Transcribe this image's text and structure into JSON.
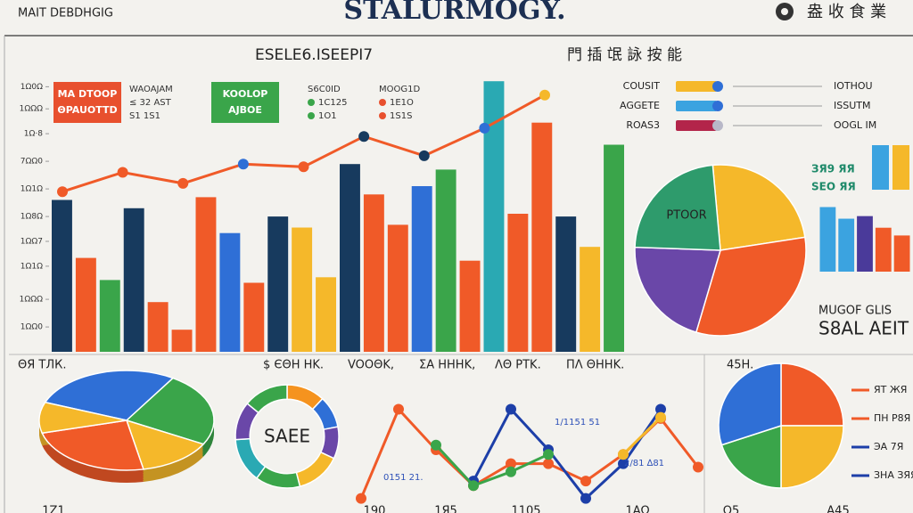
{
  "header": {
    "left": "MAIT DEBDHGIG",
    "title": "STALURMOGY.",
    "right": "盎 收 食 業"
  },
  "footer": [
    "1Z1",
    "190",
    "1Я5",
    "1105",
    "1ΑΩ",
    "Ο5",
    "Α45"
  ],
  "legend": {
    "rows": [
      {
        "name": "COUSIT",
        "color": "#f5b82a",
        "dot": "#2f6fd6",
        "value": "IOTHOU"
      },
      {
        "name": "AGGETE",
        "color": "#3ba3e0",
        "dot": "#2f6fd6",
        "value": "ISSUTM"
      },
      {
        "name": "ROAS3",
        "color": "#b3254a",
        "dot": "#b8b8c8",
        "value": "OOGL IM"
      }
    ]
  },
  "chart_data": [
    {
      "type": "bar",
      "subtitle": "ESELE6.ISEEPI7",
      "note": "門 插 氓 詠 按 能",
      "boxes": [
        {
          "lines": [
            "MA DTOOP",
            "ΘPAUOTTD"
          ],
          "color": "#e8502e"
        },
        {
          "lines": [
            "KOOLOP",
            "AJBOE"
          ],
          "color": "#3aa54a"
        }
      ],
      "keys": [
        {
          "lines": [
            "WAOAJAM",
            "≤ 32 AST",
            "S1 1S1"
          ]
        },
        {
          "lines": [
            "S6C0ID",
            "1C125",
            "1O1"
          ],
          "dot": "#3aa54a"
        },
        {
          "lines": [
            "MOOG1D",
            "1E1O",
            "1S1S"
          ],
          "dot": "#e8502e"
        }
      ],
      "values": [
        55,
        34,
        26,
        52,
        18,
        8,
        56,
        43,
        25,
        49,
        45,
        27,
        68,
        57,
        46,
        60,
        66,
        33,
        98,
        50,
        83,
        49,
        38,
        75
      ],
      "colors": [
        "#173a5e",
        "#f05a28",
        "#3aa54a",
        "#173a5e",
        "#f05a28",
        "#f05a28",
        "#f05a28",
        "#2f6fd6",
        "#f05a28",
        "#173a5e",
        "#f5b82a",
        "#f5b82a",
        "#173a5e",
        "#f05a28",
        "#f05a28",
        "#2f6fd6",
        "#3aa54a",
        "#f05a28",
        "#2aa9b3",
        "#f05a28",
        "#f05a28",
        "#173a5e",
        "#f5b82a",
        "#3aa54a"
      ],
      "line": {
        "color": "#f05a28",
        "values": [
          58,
          65,
          61,
          68,
          67,
          78,
          71,
          81,
          93
        ],
        "marker_colors": [
          "#f05a28",
          "#f05a28",
          "#f05a28",
          "#2f6fd6",
          "#f05a28",
          "#173a5e",
          "#173a5e",
          "#2f6fd6",
          "#f5b82a"
        ]
      },
      "ylim": [
        0,
        100
      ],
      "yticks": [
        {
          "value": 96,
          "label": "1Ω0Ω"
        },
        {
          "value": 88,
          "label": "1ΩΩΩ"
        },
        {
          "value": 79,
          "label": "1Ω·8"
        },
        {
          "value": 69,
          "label": "7ΩΩ0"
        },
        {
          "value": 59,
          "label": "1Ω1Ω"
        },
        {
          "value": 49,
          "label": "1Ω8Ω"
        },
        {
          "value": 40,
          "label": "1ΩΩ7"
        },
        {
          "value": 31,
          "label": "1Ω1Ω"
        },
        {
          "value": 19,
          "label": "1ΩΩΩ"
        },
        {
          "value": 9,
          "label": "1ΩΩ0"
        }
      ]
    },
    {
      "type": "pie",
      "label": "PTOOR",
      "caption": [
        "MUGOF GLIS",
        "S8AL AEIT"
      ],
      "values": [
        24,
        32,
        21,
        23
      ],
      "colors": [
        "#f5b82a",
        "#f05a28",
        "#6a47a8",
        "#2e9b6c"
      ]
    },
    {
      "type": "bar",
      "title": "ЗЯ9 ЯЯ",
      "subtitle": "SEO ЯЯ",
      "values": [
        50,
        41,
        43,
        34,
        28
      ],
      "colors": [
        "#3ba3e0",
        "#3ba3e0",
        "#4a3a9a",
        "#f05a28",
        "#f05a28"
      ],
      "ylim": [
        0,
        100
      ]
    },
    {
      "type": "bar",
      "values": [
        35,
        35
      ],
      "colors": [
        "#3ba3e0",
        "#f5b82a"
      ],
      "ylim": [
        0,
        35
      ]
    },
    {
      "type": "pie3d",
      "title": "ΘЯ ТЛК.",
      "values": [
        28,
        24,
        14,
        24,
        10
      ],
      "colors": [
        "#2f6fd6",
        "#3aa54a",
        "#f5b82a",
        "#f05a28",
        "#f5b82a"
      ]
    },
    {
      "type": "donut",
      "title": "$ ЄΘΗ ΗΚ.",
      "label": "SAEE",
      "values": [
        12,
        10,
        10,
        14,
        14,
        14,
        12,
        14
      ],
      "colors": [
        "#f5931e",
        "#2f6fd6",
        "#6a47a8",
        "#f5b82a",
        "#3aa54a",
        "#2aa9b3",
        "#6a47a8",
        "#3aa54a"
      ]
    },
    {
      "type": "line",
      "titles": [
        "VOOΘK,",
        "ΣΑ ΗΗΗΚ,",
        "ΛΘ ΡΤΚ.",
        "ΠΛ ΘΗΗΚ."
      ],
      "annotations": [
        "0151 21.",
        "1/1151 51",
        "2/81 ∆81"
      ],
      "ylim": [
        0,
        100
      ],
      "series": [
        {
          "color": "#f05a28",
          "values": [
            8,
            85,
            50,
            19,
            38,
            38,
            23,
            46,
            77,
            35
          ]
        },
        {
          "color": "#1d3fa8",
          "values": [
            null,
            null,
            null,
            23,
            85,
            50,
            8,
            38,
            85,
            null
          ]
        },
        {
          "color": "#3aa54a",
          "values": [
            null,
            null,
            54,
            19,
            31,
            46,
            null,
            null,
            null,
            null
          ]
        },
        {
          "color": "#f5b82a",
          "values": [
            null,
            null,
            null,
            null,
            null,
            null,
            null,
            46,
            78,
            null
          ]
        }
      ]
    },
    {
      "type": "pie",
      "title": "45H.",
      "values": [
        25,
        25,
        20,
        30
      ],
      "colors": [
        "#f05a28",
        "#f5b82a",
        "#3aa54a",
        "#2f6fd6"
      ],
      "legend": [
        {
          "name": "ЯТ ЖЯ",
          "color": "#f05a28"
        },
        {
          "name": "ΠΗ Ρ8Я",
          "color": "#f05a28"
        },
        {
          "name": "ЭA 7Я",
          "color": "#1d3fa8"
        },
        {
          "name": "ЗΗΑ ЗЯЯ",
          "color": "#1d3fa8"
        }
      ]
    }
  ]
}
